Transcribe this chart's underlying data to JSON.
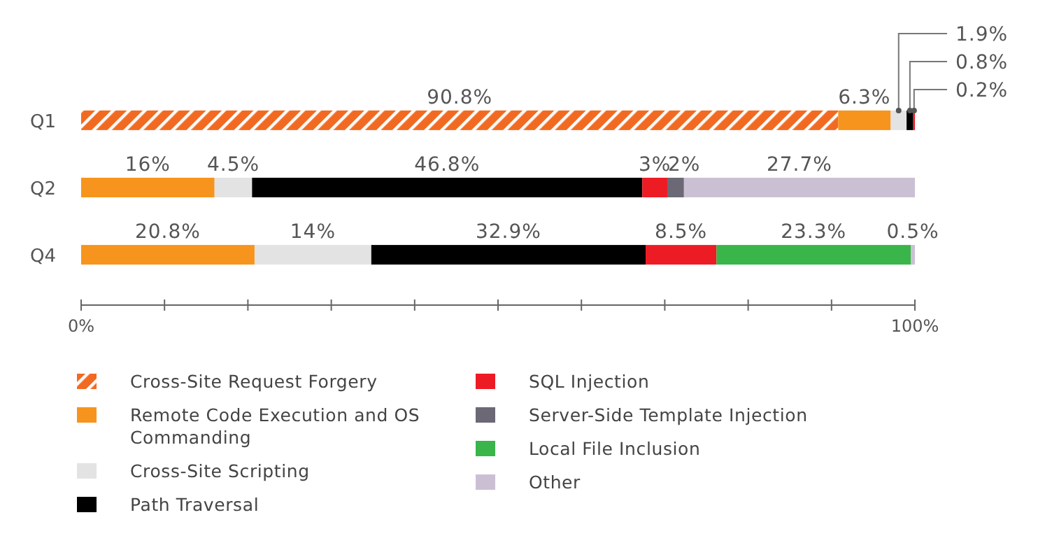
{
  "chart_data": {
    "type": "bar",
    "orientation": "horizontal",
    "stacked": true,
    "categories": [
      "Q1",
      "Q2",
      "Q4"
    ],
    "xlim": [
      0,
      100
    ],
    "xticks": [
      {
        "value": 0,
        "label": "0%"
      },
      {
        "value": 10,
        "label": null
      },
      {
        "value": 20,
        "label": null
      },
      {
        "value": 30,
        "label": null
      },
      {
        "value": 40,
        "label": null
      },
      {
        "value": 50,
        "label": null
      },
      {
        "value": 60,
        "label": null
      },
      {
        "value": 70,
        "label": null
      },
      {
        "value": 80,
        "label": null
      },
      {
        "value": 90,
        "label": null
      },
      {
        "value": 100,
        "label": "100%"
      }
    ],
    "grid": false,
    "legend": "bottom",
    "series": [
      {
        "name": "Cross-Site Request Forgery",
        "color": "#f26a21",
        "values": [
          90.8,
          null,
          null
        ],
        "value_labels": [
          "90.8%",
          null,
          null
        ]
      },
      {
        "name": "Remote Code Execution and OS Commanding",
        "color": "#f7941d",
        "values": [
          6.3,
          16,
          20.8
        ],
        "value_labels": [
          "6.3%",
          "16%",
          "20.8%"
        ]
      },
      {
        "name": "Cross-Site Scripting",
        "color": "#e3e3e3",
        "values": [
          1.9,
          4.5,
          14
        ],
        "value_labels": [
          "1.9%",
          "4.5%",
          "14%"
        ]
      },
      {
        "name": "Path Traversal",
        "color": "#000000",
        "values": [
          0.8,
          46.8,
          32.9
        ],
        "value_labels": [
          "0.8%",
          "46.8%",
          "32.9%"
        ]
      },
      {
        "name": "SQL Injection",
        "color": "#ed1c24",
        "values": [
          0.2,
          3,
          8.5
        ],
        "value_labels": [
          "0.2%",
          "3%",
          "8.5%"
        ]
      },
      {
        "name": "Server-Side Template Injection",
        "color": "#6d6875",
        "values": [
          null,
          2,
          null
        ],
        "value_labels": [
          null,
          "2%",
          null
        ]
      },
      {
        "name": "Local File Inclusion",
        "color": "#39b54a",
        "values": [
          null,
          null,
          23.3
        ],
        "value_labels": [
          null,
          null,
          "23.3%"
        ]
      },
      {
        "name": "Other",
        "color": "#cbc0d3",
        "values": [
          null,
          27.7,
          0.5
        ],
        "value_labels": [
          null,
          "27.7%",
          "0.5%"
        ]
      }
    ]
  }
}
